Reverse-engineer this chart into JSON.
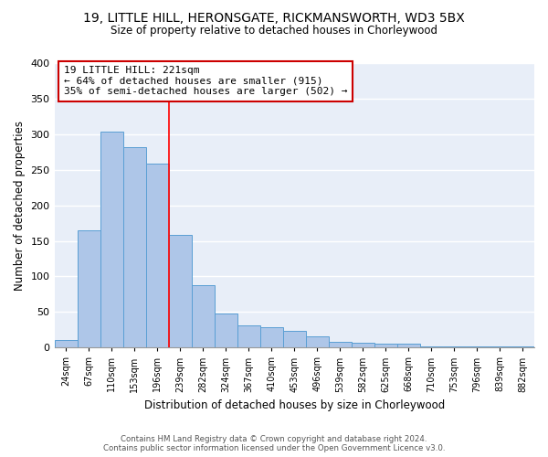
{
  "title_line1": "19, LITTLE HILL, HERONSGATE, RICKMANSWORTH, WD3 5BX",
  "title_line2": "Size of property relative to detached houses in Chorleywood",
  "xlabel": "Distribution of detached houses by size in Chorleywood",
  "ylabel": "Number of detached properties",
  "bar_labels": [
    "24sqm",
    "67sqm",
    "110sqm",
    "153sqm",
    "196sqm",
    "239sqm",
    "282sqm",
    "324sqm",
    "367sqm",
    "410sqm",
    "453sqm",
    "496sqm",
    "539sqm",
    "582sqm",
    "625sqm",
    "668sqm",
    "710sqm",
    "753sqm",
    "796sqm",
    "839sqm",
    "882sqm"
  ],
  "bar_values": [
    10,
    165,
    303,
    282,
    259,
    159,
    88,
    48,
    31,
    29,
    24,
    16,
    8,
    7,
    5,
    5,
    2,
    2,
    1,
    1,
    1
  ],
  "bar_color": "#aec6e8",
  "bar_edge_color": "#5a9fd4",
  "ylim": [
    0,
    400
  ],
  "yticks": [
    0,
    50,
    100,
    150,
    200,
    250,
    300,
    350,
    400
  ],
  "vline_x": 4.5,
  "vline_color": "red",
  "annotation_title": "19 LITTLE HILL: 221sqm",
  "annotation_line1": "← 64% of detached houses are smaller (915)",
  "annotation_line2": "35% of semi-detached houses are larger (502) →",
  "annotation_box_color": "white",
  "annotation_box_edge": "#cc0000",
  "footer_line1": "Contains HM Land Registry data © Crown copyright and database right 2024.",
  "footer_line2": "Contains public sector information licensed under the Open Government Licence v3.0.",
  "background_color": "#e8eef8"
}
